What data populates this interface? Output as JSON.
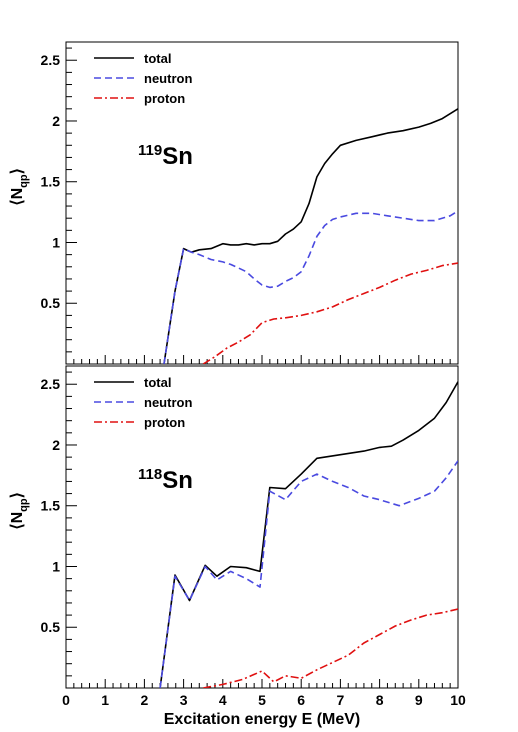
{
  "chart_data": [
    {
      "type": "line",
      "panel": "top",
      "annotation": {
        "mass": "119",
        "element": "Sn"
      },
      "ylabel": {
        "main": "⟨N",
        "sub": "qp",
        "close": "⟩"
      },
      "xlabel": "",
      "xlim": [
        0,
        10
      ],
      "ylim": [
        0,
        2.65
      ],
      "y_ticks": [
        0.5,
        1,
        1.5,
        2,
        2.5
      ],
      "y_tick_labels": [
        "0.5",
        "1",
        "1.5",
        "2",
        "2.5"
      ],
      "legend_position": "top-left",
      "series": [
        {
          "name": "total",
          "color": "#000000",
          "dash": "solid",
          "x": [
            2.5,
            2.78,
            3.0,
            3.2,
            3.4,
            3.7,
            4.0,
            4.2,
            4.4,
            4.6,
            4.8,
            5.0,
            5.2,
            5.4,
            5.6,
            5.8,
            6.0,
            6.2,
            6.4,
            6.6,
            6.8,
            7.0,
            7.4,
            7.8,
            8.2,
            8.6,
            9.0,
            9.3,
            9.6,
            10.0
          ],
          "y": [
            0.0,
            0.6,
            0.95,
            0.92,
            0.94,
            0.95,
            0.99,
            0.98,
            0.98,
            0.99,
            0.98,
            0.99,
            0.99,
            1.01,
            1.07,
            1.11,
            1.17,
            1.32,
            1.54,
            1.65,
            1.73,
            1.8,
            1.84,
            1.87,
            1.9,
            1.92,
            1.95,
            1.98,
            2.02,
            2.1
          ]
        },
        {
          "name": "neutron",
          "color": "#4a4ae0",
          "dash": "dashed",
          "x": [
            2.5,
            2.78,
            3.0,
            3.2,
            3.4,
            3.7,
            4.0,
            4.2,
            4.4,
            4.6,
            4.8,
            5.0,
            5.2,
            5.4,
            5.6,
            5.8,
            6.0,
            6.2,
            6.4,
            6.6,
            6.8,
            7.0,
            7.4,
            7.8,
            8.2,
            8.6,
            9.0,
            9.4,
            9.8,
            10.0
          ],
          "y": [
            0.0,
            0.6,
            0.95,
            0.92,
            0.9,
            0.86,
            0.84,
            0.82,
            0.79,
            0.76,
            0.7,
            0.65,
            0.63,
            0.64,
            0.68,
            0.71,
            0.76,
            0.89,
            1.05,
            1.14,
            1.19,
            1.21,
            1.24,
            1.24,
            1.22,
            1.2,
            1.18,
            1.18,
            1.22,
            1.26
          ]
        },
        {
          "name": "proton",
          "color": "#e01010",
          "dash": "dashdot",
          "x": [
            3.5,
            3.8,
            4.1,
            4.4,
            4.7,
            5.0,
            5.3,
            5.6,
            6.0,
            6.4,
            6.8,
            7.2,
            7.6,
            8.0,
            8.4,
            8.8,
            9.2,
            9.6,
            10.0
          ],
          "y": [
            0.0,
            0.06,
            0.13,
            0.18,
            0.24,
            0.34,
            0.37,
            0.38,
            0.4,
            0.43,
            0.47,
            0.53,
            0.58,
            0.63,
            0.69,
            0.74,
            0.77,
            0.81,
            0.83
          ]
        }
      ]
    },
    {
      "type": "line",
      "panel": "bottom",
      "annotation": {
        "mass": "118",
        "element": "Sn"
      },
      "ylabel": {
        "main": "⟨N",
        "sub": "qp",
        "close": "⟩"
      },
      "xlabel": "Excitation energy E (MeV)",
      "xlim": [
        0,
        10
      ],
      "ylim": [
        0,
        2.65
      ],
      "x_ticks": [
        0,
        1,
        2,
        3,
        4,
        5,
        6,
        7,
        8,
        9,
        10
      ],
      "x_tick_labels": [
        "0",
        "1",
        "2",
        "3",
        "4",
        "5",
        "6",
        "7",
        "8",
        "9",
        "10"
      ],
      "y_ticks": [
        0.5,
        1,
        1.5,
        2,
        2.5
      ],
      "y_tick_labels": [
        "0.5",
        "1",
        "1.5",
        "2",
        "2.5"
      ],
      "legend_position": "top-left",
      "series": [
        {
          "name": "total",
          "color": "#000000",
          "dash": "solid",
          "x": [
            2.4,
            2.78,
            3.15,
            3.55,
            3.85,
            4.2,
            4.6,
            4.95,
            5.2,
            5.6,
            6.0,
            6.4,
            7.0,
            7.6,
            8.0,
            8.3,
            8.6,
            9.0,
            9.4,
            9.7,
            10.0
          ],
          "y": [
            0.0,
            0.93,
            0.72,
            1.01,
            0.92,
            1.0,
            0.99,
            0.96,
            1.65,
            1.64,
            1.76,
            1.89,
            1.92,
            1.95,
            1.98,
            1.99,
            2.04,
            2.12,
            2.22,
            2.35,
            2.52
          ]
        },
        {
          "name": "neutron",
          "color": "#4a4ae0",
          "dash": "dashed",
          "x": [
            2.4,
            2.78,
            3.15,
            3.55,
            3.85,
            4.2,
            4.6,
            4.95,
            5.2,
            5.6,
            6.0,
            6.4,
            6.8,
            7.2,
            7.6,
            8.0,
            8.5,
            9.0,
            9.4,
            9.7,
            10.0
          ],
          "y": [
            0.0,
            0.92,
            0.72,
            1.0,
            0.89,
            0.96,
            0.9,
            0.83,
            1.62,
            1.55,
            1.7,
            1.76,
            1.7,
            1.65,
            1.58,
            1.55,
            1.5,
            1.56,
            1.62,
            1.73,
            1.87
          ]
        },
        {
          "name": "proton",
          "color": "#e01010",
          "dash": "dashdot",
          "x": [
            3.5,
            4.0,
            4.5,
            5.0,
            5.3,
            5.6,
            6.0,
            6.4,
            6.8,
            7.2,
            7.6,
            8.0,
            8.4,
            8.8,
            9.2,
            9.6,
            10.0
          ],
          "y": [
            0.0,
            0.03,
            0.07,
            0.14,
            0.05,
            0.1,
            0.08,
            0.15,
            0.21,
            0.27,
            0.37,
            0.44,
            0.51,
            0.56,
            0.6,
            0.62,
            0.65
          ]
        }
      ]
    }
  ]
}
